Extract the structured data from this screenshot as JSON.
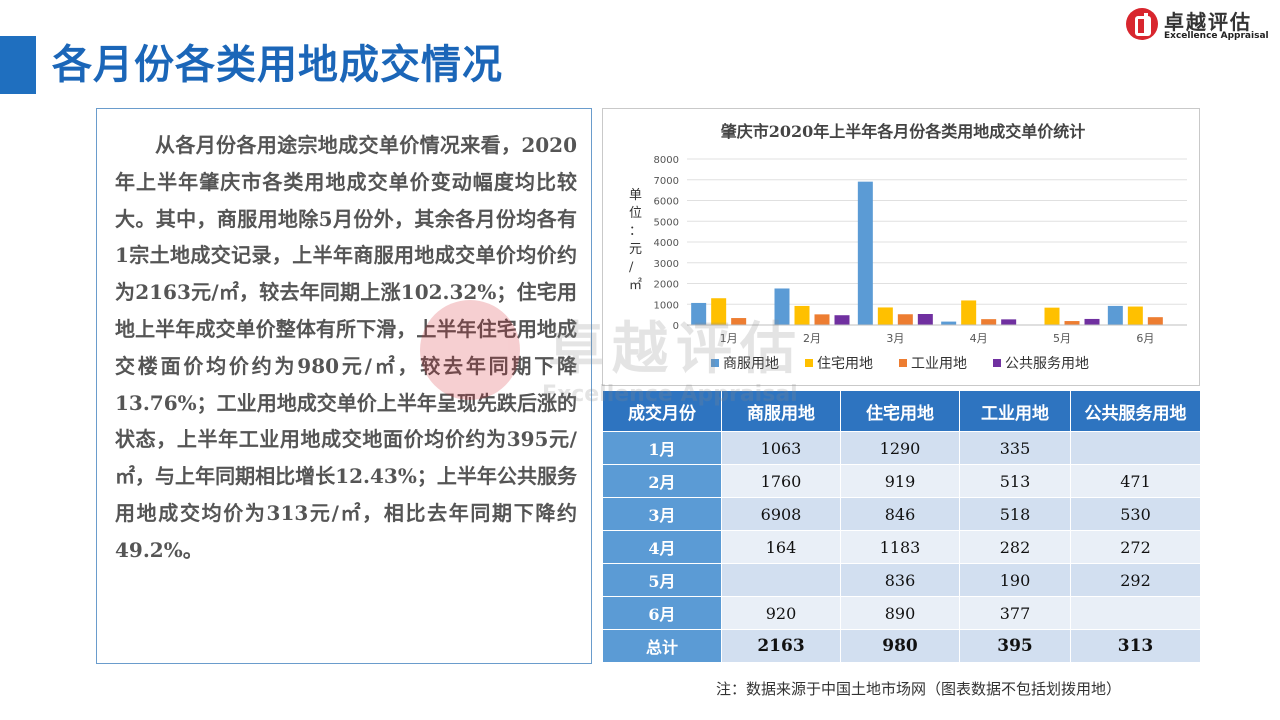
{
  "page": {
    "title": "各月份各类用地成交情况"
  },
  "logo": {
    "cn": "卓越评估",
    "en": "Excellence Appraisal"
  },
  "watermark": {
    "cn": "卓越评估",
    "en": "Excellence Appraisal"
  },
  "body_text": "从各月份各用途宗地成交单价情况来看，2020年上半年肇庆市各类用地成交单价变动幅度均比较大。其中，商服用地除5月份外，其余各月份均各有1宗土地成交记录，上半年商服用地成交单价均价约为2163元/㎡，较去年同期上涨102.32%；住宅用地上半年成交单价整体有所下滑，上半年住宅用地成交楼面价均价约为980元/㎡，较去年同期下降13.76%；工业用地成交单价上半年呈现先跌后涨的状态，上半年工业用地成交地面价均价约为395元/㎡，与上年同期相比增长12.43%；上半年公共服务用地成交均价为313元/㎡，相比去年同期下降约49.2%。",
  "chart_data": {
    "type": "bar",
    "title": "肇庆市2020年上半年各月份各类用地成交单价统计",
    "ylabel": "单位：元/㎡",
    "categories": [
      "1月",
      "2月",
      "3月",
      "4月",
      "5月",
      "6月"
    ],
    "ylim": [
      0,
      8000
    ],
    "yticks": [
      0,
      1000,
      2000,
      3000,
      4000,
      5000,
      6000,
      7000,
      8000
    ],
    "grid": true,
    "legend_position": "bottom",
    "series": [
      {
        "name": "商服用地",
        "color": "#5b9bd5",
        "values": [
          1063,
          1760,
          6908,
          164,
          null,
          920
        ]
      },
      {
        "name": "住宅用地",
        "color": "#ffc000",
        "values": [
          1290,
          919,
          846,
          1183,
          836,
          890
        ]
      },
      {
        "name": "工业用地",
        "color": "#ed7d31",
        "values": [
          335,
          513,
          518,
          282,
          190,
          377
        ]
      },
      {
        "name": "公共服务用地",
        "color": "#7030a0",
        "values": [
          null,
          471,
          530,
          272,
          292,
          null
        ]
      }
    ]
  },
  "table": {
    "headers": [
      "成交月份",
      "商服用地",
      "住宅用地",
      "工业用地",
      "公共服务用地"
    ],
    "rows": [
      [
        "1月",
        "1063",
        "1290",
        "335",
        ""
      ],
      [
        "2月",
        "1760",
        "919",
        "513",
        "471"
      ],
      [
        "3月",
        "6908",
        "846",
        "518",
        "530"
      ],
      [
        "4月",
        "164",
        "1183",
        "282",
        "272"
      ],
      [
        "5月",
        "",
        "836",
        "190",
        "292"
      ],
      [
        "6月",
        "920",
        "890",
        "377",
        ""
      ]
    ],
    "total": [
      "总计",
      "2163",
      "980",
      "395",
      "313"
    ]
  },
  "note": "注：数据来源于中国土地市场网（图表数据不包括划拨用地）"
}
